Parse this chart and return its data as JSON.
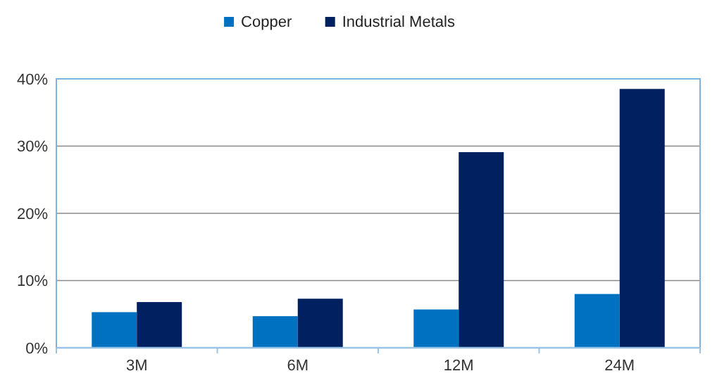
{
  "chart_data": {
    "type": "bar",
    "categories": [
      "3M",
      "6M",
      "12M",
      "24M"
    ],
    "series": [
      {
        "name": "Copper",
        "color": "#0070c0",
        "values": [
          5.3,
          4.7,
          5.7,
          8.0
        ]
      },
      {
        "name": "Industrial Metals",
        "color": "#002060",
        "values": [
          6.8,
          7.3,
          29.1,
          38.5
        ]
      }
    ],
    "ylim": [
      0,
      40
    ],
    "yticks": [
      {
        "value": 0,
        "label": "0%"
      },
      {
        "value": 10,
        "label": "10%"
      },
      {
        "value": 20,
        "label": "20%"
      },
      {
        "value": 30,
        "label": "30%"
      },
      {
        "value": 40,
        "label": "40%"
      }
    ],
    "grid": "y",
    "legend": "top"
  }
}
